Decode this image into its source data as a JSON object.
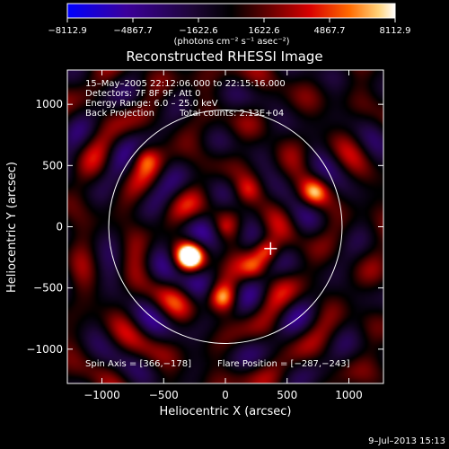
{
  "chart_data": {
    "type": "heatmap",
    "title": "Reconstructed RHESSI Image",
    "xlabel": "Heliocentric X (arcsec)",
    "ylabel": "Heliocentric Y (arcsec)",
    "xlim": [
      -1280,
      1280
    ],
    "ylim": [
      -1280,
      1280
    ],
    "x_ticks": [
      -1000,
      -500,
      0,
      500,
      1000
    ],
    "y_ticks": [
      -1000,
      -500,
      0,
      500,
      1000
    ],
    "x_tick_labels": [
      "−1000",
      "−500",
      "0",
      "500",
      "1000"
    ],
    "y_tick_labels": [
      "−1000",
      "−500",
      "0",
      "500",
      "1000"
    ],
    "colorbar": {
      "range": [
        -8112.9,
        8112.9
      ],
      "ticks": [
        -8112.9,
        -4867.7,
        -1622.6,
        1622.6,
        4867.7,
        8112.9
      ],
      "tick_labels": [
        "−8112.9",
        "−4867.7",
        "−1622.6",
        "1622.6",
        "4867.7",
        "8112.9"
      ],
      "unit": "(photons cm⁻² s⁻¹ asec⁻²)",
      "colors": [
        "#0000ff",
        "#3b009a",
        "#2a0a50",
        "#000000",
        "#6a0000",
        "#d80000",
        "#ff6a00",
        "#ffd27a",
        "#ffffff"
      ]
    },
    "annotations": [
      "15–May–2005 22:12:06.000 to 22:15:16.000",
      "Detectors: 7F 8F 9F, Att 0",
      "Energy Range: 6.0 – 25.0 keV",
      "Back Projection",
      "Total counts: 2.13E+04",
      "Spin Axis = [366,−178]",
      "Flare Position = [−287,−243]"
    ],
    "solar_limb_radius_arcsec": 945,
    "crosshair_position_arcsec": [
      366,
      -178
    ],
    "bright_sources": [
      {
        "x": -287,
        "y": -243,
        "value": 8112.9
      },
      {
        "x": 330,
        "y": -200,
        "value": 5200
      },
      {
        "x": -20,
        "y": -580,
        "value": 4600
      },
      {
        "x": 720,
        "y": 280,
        "value": 4200
      },
      {
        "x": 230,
        "y": -330,
        "value": 3600
      },
      {
        "x": -650,
        "y": 560,
        "value": 3000
      },
      {
        "x": 180,
        "y": 300,
        "value": 2800
      }
    ],
    "grid": false
  },
  "footer": {
    "timestamp": "9–Jul–2013 15:13"
  }
}
